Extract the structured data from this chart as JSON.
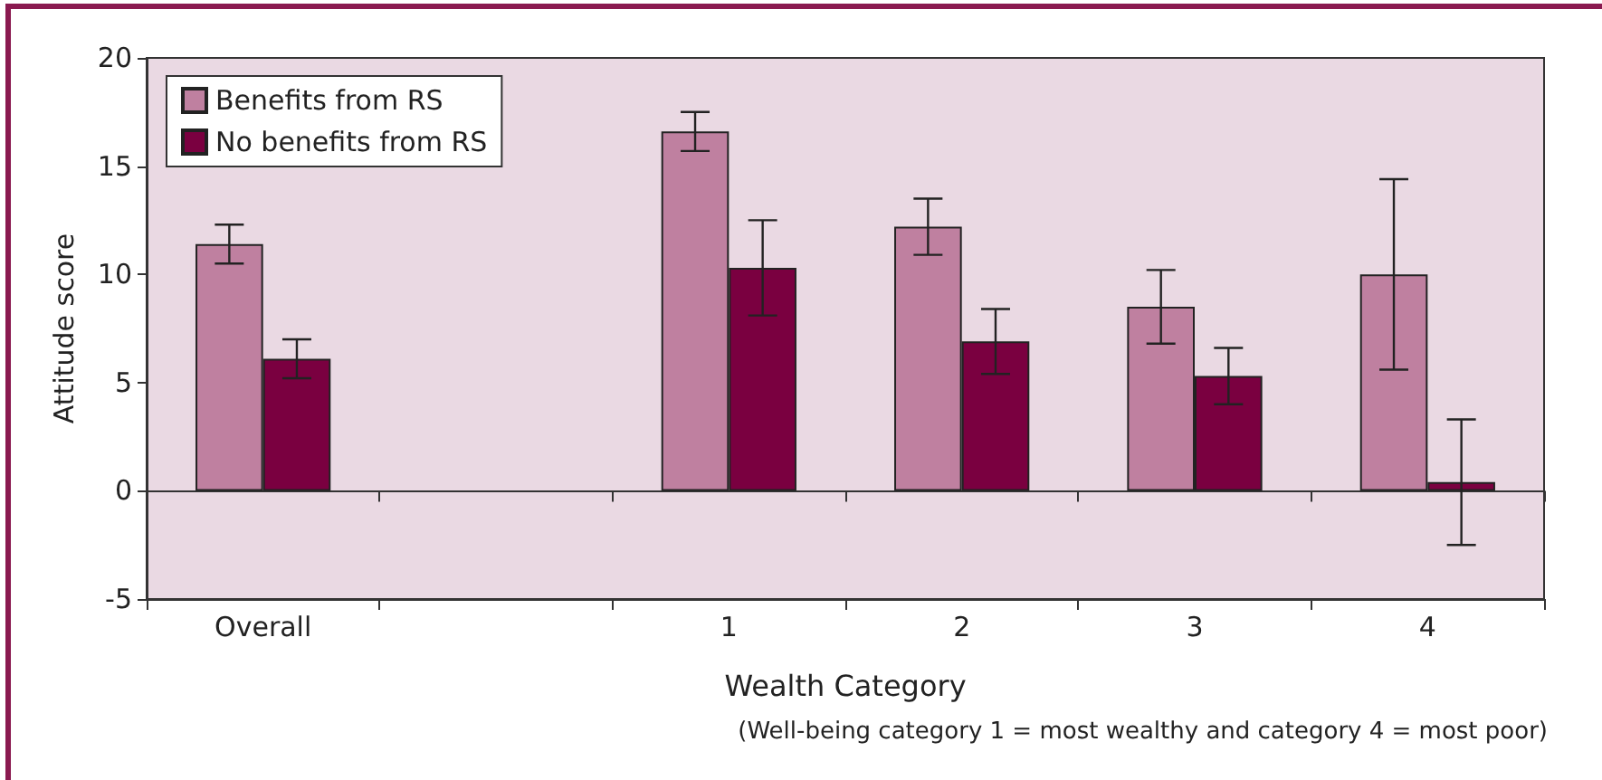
{
  "chart_data": {
    "type": "bar",
    "categories": [
      "Overall",
      null,
      "1",
      "2",
      "3",
      "4"
    ],
    "series": [
      {
        "name": "Benefits from RS",
        "color": "#bf80a0",
        "values": [
          11.4,
          null,
          16.6,
          12.2,
          8.5,
          10.0
        ],
        "errors": [
          0.9,
          null,
          0.9,
          1.3,
          1.7,
          4.4
        ]
      },
      {
        "name": "No benefits from RS",
        "color": "#7a0040",
        "values": [
          6.1,
          null,
          10.3,
          6.9,
          5.3,
          0.4
        ],
        "errors": [
          0.9,
          null,
          2.2,
          1.5,
          1.3,
          2.9
        ]
      }
    ],
    "ylim": [
      -5,
      20
    ],
    "yticks": [
      -5,
      0,
      5,
      10,
      15,
      20
    ],
    "ylabel": "Attitude score",
    "xlabel": "Wealth Category",
    "annotations": [
      "(Well-being category 1 = most wealthy and category 4 = most poor)"
    ],
    "legend": "top left"
  }
}
